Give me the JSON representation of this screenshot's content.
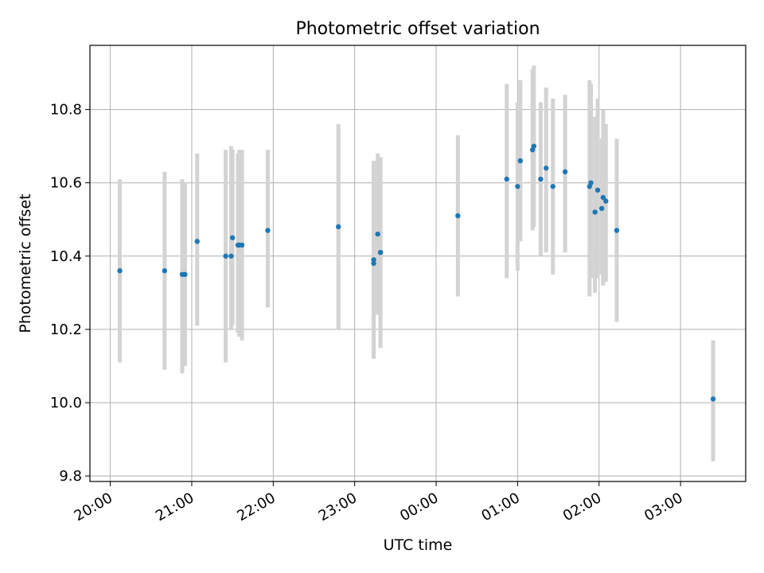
{
  "chart_data": {
    "type": "scatter",
    "title": "Photometric offset variation",
    "xlabel": "UTC time",
    "ylabel": "Photometric offset",
    "x_unit": "hours",
    "x_origin_label": "20:00",
    "xlim": [
      -0.25,
      7.8
    ],
    "ylim": [
      9.785,
      10.975
    ],
    "grid": true,
    "x_ticks": [
      {
        "value": 0,
        "label": "20:00"
      },
      {
        "value": 1,
        "label": "21:00"
      },
      {
        "value": 2,
        "label": "22:00"
      },
      {
        "value": 3,
        "label": "23:00"
      },
      {
        "value": 4,
        "label": "00:00"
      },
      {
        "value": 5,
        "label": "01:00"
      },
      {
        "value": 6,
        "label": "02:00"
      },
      {
        "value": 7,
        "label": "03:00"
      }
    ],
    "y_ticks": [
      {
        "value": 9.8,
        "label": "9.8"
      },
      {
        "value": 10.0,
        "label": "10.0"
      },
      {
        "value": 10.2,
        "label": "10.2"
      },
      {
        "value": 10.4,
        "label": "10.4"
      },
      {
        "value": 10.6,
        "label": "10.6"
      },
      {
        "value": 10.8,
        "label": "10.8"
      }
    ],
    "colors": {
      "point": "#1f77b4",
      "errorbar": "#d3d3d3",
      "grid": "#b0b0b0"
    },
    "series": [
      {
        "points": [
          {
            "t": "20:07",
            "y": 10.36,
            "lo": 10.11,
            "hi": 10.61
          },
          {
            "t": "20:40",
            "y": 10.36,
            "lo": 10.09,
            "hi": 10.63
          },
          {
            "t": "20:53",
            "y": 10.35,
            "lo": 10.08,
            "hi": 10.61
          },
          {
            "t": "20:55",
            "y": 10.35,
            "lo": 10.1,
            "hi": 10.6
          },
          {
            "t": "21:04",
            "y": 10.44,
            "lo": 10.21,
            "hi": 10.68
          },
          {
            "t": "21:25",
            "y": 10.4,
            "lo": 10.11,
            "hi": 10.69
          },
          {
            "t": "21:29",
            "y": 10.4,
            "lo": 10.2,
            "hi": 10.7
          },
          {
            "t": "21:30",
            "y": 10.45,
            "lo": 10.21,
            "hi": 10.69
          },
          {
            "t": "21:34",
            "y": 10.43,
            "lo": 10.19,
            "hi": 10.68
          },
          {
            "t": "21:35",
            "y": 10.43,
            "lo": 10.18,
            "hi": 10.69
          },
          {
            "t": "21:37",
            "y": 10.43,
            "lo": 10.17,
            "hi": 10.69
          },
          {
            "t": "21:56",
            "y": 10.47,
            "lo": 10.26,
            "hi": 10.69
          },
          {
            "t": "22:48",
            "y": 10.48,
            "lo": 10.2,
            "hi": 10.76
          },
          {
            "t": "23:14",
            "y": 10.39,
            "lo": 10.12,
            "hi": 10.66
          },
          {
            "t": "23:14",
            "y": 10.38,
            "lo": 10.13,
            "hi": 10.65
          },
          {
            "t": "23:17",
            "y": 10.46,
            "lo": 10.24,
            "hi": 10.68
          },
          {
            "t": "23:19",
            "y": 10.41,
            "lo": 10.15,
            "hi": 10.67
          },
          {
            "t": "23:19",
            "y": 10.41,
            "lo": 10.15,
            "hi": 10.67
          },
          {
            "t": "00:16",
            "y": 10.51,
            "lo": 10.29,
            "hi": 10.73
          },
          {
            "t": "00:52",
            "y": 10.61,
            "lo": 10.34,
            "hi": 10.87
          },
          {
            "t": "01:00",
            "y": 10.59,
            "lo": 10.36,
            "hi": 10.82
          },
          {
            "t": "01:02",
            "y": 10.66,
            "lo": 10.44,
            "hi": 10.88
          },
          {
            "t": "01:11",
            "y": 10.69,
            "lo": 10.47,
            "hi": 10.91
          },
          {
            "t": "01:12",
            "y": 10.7,
            "lo": 10.48,
            "hi": 10.92
          },
          {
            "t": "01:17",
            "y": 10.61,
            "lo": 10.4,
            "hi": 10.82
          },
          {
            "t": "01:21",
            "y": 10.64,
            "lo": 10.41,
            "hi": 10.86
          },
          {
            "t": "01:26",
            "y": 10.59,
            "lo": 10.35,
            "hi": 10.83
          },
          {
            "t": "01:35",
            "y": 10.63,
            "lo": 10.41,
            "hi": 10.84
          },
          {
            "t": "01:53",
            "y": 10.59,
            "lo": 10.29,
            "hi": 10.88
          },
          {
            "t": "01:54",
            "y": 10.6,
            "lo": 10.34,
            "hi": 10.87
          },
          {
            "t": "01:57",
            "y": 10.52,
            "lo": 10.3,
            "hi": 10.78
          },
          {
            "t": "01:59",
            "y": 10.58,
            "lo": 10.34,
            "hi": 10.83
          },
          {
            "t": "02:02",
            "y": 10.53,
            "lo": 10.35,
            "hi": 10.72
          },
          {
            "t": "02:03",
            "y": 10.56,
            "lo": 10.32,
            "hi": 10.8
          },
          {
            "t": "02:05",
            "y": 10.55,
            "lo": 10.33,
            "hi": 10.76
          },
          {
            "t": "02:13",
            "y": 10.47,
            "lo": 10.22,
            "hi": 10.72
          },
          {
            "t": "03:24",
            "y": 10.01,
            "lo": 9.84,
            "hi": 10.17
          }
        ]
      }
    ]
  }
}
